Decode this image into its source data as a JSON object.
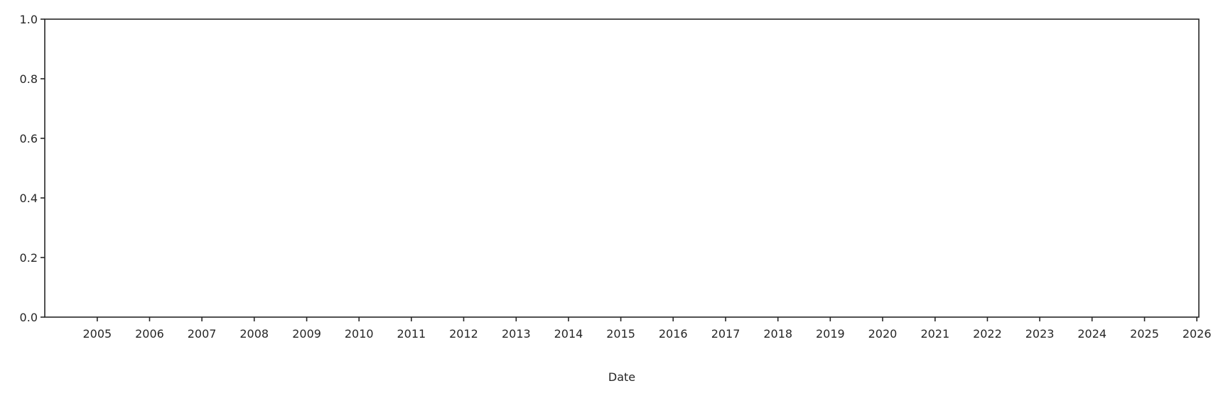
{
  "chart_data": {
    "type": "line",
    "title": "",
    "xlabel": "Date",
    "ylabel": "",
    "xlim": [
      "2004-01-01",
      "2026-01-15"
    ],
    "ylim": [
      0.0,
      1.0
    ],
    "x_ticks": [
      "2005",
      "2006",
      "2007",
      "2008",
      "2009",
      "2010",
      "2011",
      "2012",
      "2013",
      "2014",
      "2015",
      "2016",
      "2017",
      "2018",
      "2019",
      "2020",
      "2021",
      "2022",
      "2023",
      "2024",
      "2025",
      "2026"
    ],
    "y_ticks": [
      "0.0",
      "0.2",
      "0.4",
      "0.6",
      "0.8",
      "1.0"
    ],
    "grid": false,
    "series": [],
    "colors": {
      "axis": "#262626",
      "background": "#ffffff"
    }
  }
}
